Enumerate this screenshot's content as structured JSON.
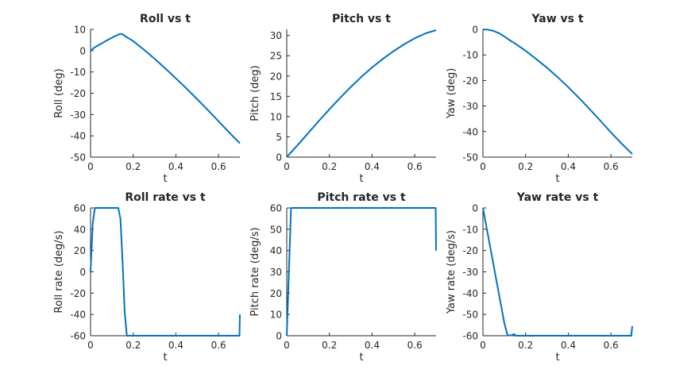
{
  "chart_data": [
    {
      "type": "line",
      "title": "Roll vs t",
      "xlabel": "t",
      "ylabel": "Roll (deg)",
      "xlim": [
        0,
        0.7
      ],
      "ylim": [
        -50,
        10
      ],
      "xticks": [
        0,
        0.2,
        0.4,
        0.6
      ],
      "xtick_labels": [
        "0",
        "0.2",
        "0.4",
        "0.6"
      ],
      "yticks": [
        -50,
        -40,
        -30,
        -20,
        -10,
        0,
        10
      ],
      "ytick_labels": [
        "-50",
        "-40",
        "-30",
        "-20",
        "-10",
        "0",
        "10"
      ],
      "grid": false,
      "color": "#0072BD",
      "series": [
        {
          "x": [
            0,
            0.02,
            0.05,
            0.08,
            0.11,
            0.14,
            0.15,
            0.2,
            0.25,
            0.3,
            0.35,
            0.4,
            0.45,
            0.5,
            0.55,
            0.6,
            0.65,
            0.7
          ],
          "y": [
            0,
            1.6,
            3.3,
            5,
            6.6,
            7.9,
            7.6,
            4.5,
            0.5,
            -3.8,
            -8.3,
            -13,
            -17.8,
            -22.8,
            -27.9,
            -33.1,
            -38.4,
            -43.5
          ]
        }
      ]
    },
    {
      "type": "line",
      "title": "Pitch vs t",
      "xlabel": "t",
      "ylabel": "Pitch (deg)",
      "xlim": [
        0,
        0.7
      ],
      "ylim": [
        0,
        31.5
      ],
      "xticks": [
        0,
        0.2,
        0.4,
        0.6
      ],
      "xtick_labels": [
        "0",
        "0.2",
        "0.4",
        "0.6"
      ],
      "yticks": [
        0,
        5,
        10,
        15,
        20,
        25,
        30
      ],
      "ytick_labels": [
        "0",
        "5",
        "10",
        "15",
        "20",
        "25",
        "30"
      ],
      "grid": false,
      "color": "#0072BD",
      "series": [
        {
          "x": [
            0,
            0.02,
            0.05,
            0.1,
            0.15,
            0.2,
            0.25,
            0.3,
            0.35,
            0.4,
            0.45,
            0.5,
            0.55,
            0.6,
            0.65,
            0.7
          ],
          "y": [
            0,
            1.2,
            2.9,
            5.9,
            8.9,
            11.8,
            14.6,
            17.3,
            19.8,
            22.1,
            24.2,
            26.1,
            27.8,
            29.3,
            30.5,
            31.3
          ]
        }
      ]
    },
    {
      "type": "line",
      "title": "Yaw vs t",
      "xlabel": "t",
      "ylabel": "Yaw (deg)",
      "xlim": [
        0,
        0.7
      ],
      "ylim": [
        -50,
        0
      ],
      "xticks": [
        0,
        0.2,
        0.4,
        0.6
      ],
      "xtick_labels": [
        "0",
        "0.2",
        "0.4",
        "0.6"
      ],
      "yticks": [
        -50,
        -40,
        -30,
        -20,
        -10,
        0
      ],
      "ytick_labels": [
        "-50",
        "-40",
        "-30",
        "-20",
        "-10",
        "0"
      ],
      "grid": false,
      "color": "#0072BD",
      "series": [
        {
          "x": [
            0,
            0.02,
            0.05,
            0.08,
            0.1,
            0.13,
            0.15,
            0.2,
            0.25,
            0.3,
            0.35,
            0.4,
            0.45,
            0.5,
            0.55,
            0.6,
            0.65,
            0.7
          ],
          "y": [
            0,
            -0.1,
            -0.6,
            -1.7,
            -2.8,
            -4.5,
            -5.5,
            -8.4,
            -11.6,
            -15,
            -18.7,
            -22.6,
            -26.8,
            -31.2,
            -35.7,
            -40.3,
            -44.7,
            -48.8
          ]
        }
      ]
    },
    {
      "type": "line",
      "title": "Roll rate vs t",
      "xlabel": "t",
      "ylabel": "Roll rate (deg/s)",
      "xlim": [
        0,
        0.7
      ],
      "ylim": [
        -60,
        60
      ],
      "xticks": [
        0,
        0.2,
        0.4,
        0.6
      ],
      "xtick_labels": [
        "0",
        "0.2",
        "0.4",
        "0.6"
      ],
      "yticks": [
        -60,
        -40,
        -20,
        0,
        20,
        40,
        60
      ],
      "ytick_labels": [
        "-60",
        "-40",
        "-20",
        "0",
        "20",
        "40",
        "60"
      ],
      "grid": false,
      "color": "#0072BD",
      "series": [
        {
          "x": [
            0,
            0.01,
            0.02,
            0.13,
            0.14,
            0.15,
            0.16,
            0.17,
            0.68,
            0.698,
            0.7
          ],
          "y": [
            0,
            45,
            60,
            60,
            50,
            10,
            -38,
            -60,
            -60,
            -60,
            -40
          ]
        }
      ]
    },
    {
      "type": "line",
      "title": "Pitch rate vs t",
      "xlabel": "t",
      "ylabel": "Pitch rate (deg/s)",
      "xlim": [
        0,
        0.7
      ],
      "ylim": [
        0,
        60
      ],
      "xticks": [
        0,
        0.2,
        0.4,
        0.6
      ],
      "xtick_labels": [
        "0",
        "0.2",
        "0.4",
        "0.6"
      ],
      "yticks": [
        0,
        10,
        20,
        30,
        40,
        50,
        60
      ],
      "ytick_labels": [
        "0",
        "10",
        "20",
        "30",
        "40",
        "50",
        "60"
      ],
      "grid": false,
      "color": "#0072BD",
      "series": [
        {
          "x": [
            0,
            0.02,
            0.68,
            0.698,
            0.7
          ],
          "y": [
            0,
            60,
            60,
            60,
            40
          ]
        }
      ]
    },
    {
      "type": "line",
      "title": "Yaw rate vs t",
      "xlabel": "t",
      "ylabel": "Yaw rate (deg/s)",
      "xlim": [
        0,
        0.7
      ],
      "ylim": [
        -60,
        0
      ],
      "xticks": [
        0,
        0.2,
        0.4,
        0.6
      ],
      "xtick_labels": [
        "0",
        "0.2",
        "0.4",
        "0.6"
      ],
      "yticks": [
        -60,
        -50,
        -40,
        -30,
        -20,
        -10,
        0
      ],
      "ytick_labels": [
        "-60",
        "-50",
        "-40",
        "-30",
        "-20",
        "-10",
        "0"
      ],
      "grid": false,
      "color": "#0072BD",
      "series": [
        {
          "x": [
            0,
            0.1,
            0.115,
            0.135,
            0.145,
            0.155,
            0.68,
            0.695,
            0.7
          ],
          "y": [
            0,
            -54,
            -59.8,
            -59.8,
            -59.2,
            -60,
            -60,
            -60,
            -55.5
          ]
        }
      ]
    }
  ]
}
